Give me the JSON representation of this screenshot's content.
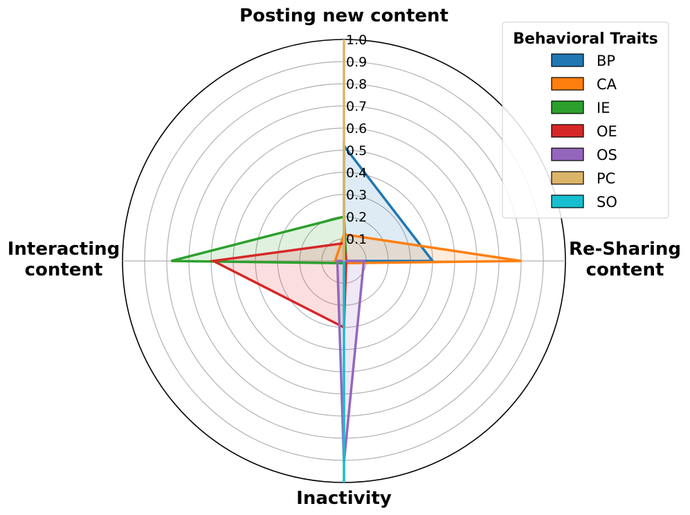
{
  "chart_data": {
    "type": "radar",
    "axes": [
      "Posting new content",
      "Re-Sharing content",
      "Inactivity",
      "Interacting content"
    ],
    "axis_label_lines": [
      [
        "Posting new content"
      ],
      [
        "Re-Sharing",
        "content"
      ],
      [
        "Inactivity"
      ],
      [
        "Interacting",
        "content"
      ]
    ],
    "rlim": [
      0,
      1.0
    ],
    "r_ticks": [
      "0.1",
      "0.2",
      "0.3",
      "0.4",
      "0.5",
      "0.6",
      "0.7",
      "0.8",
      "0.9",
      "1.0"
    ],
    "grid": true,
    "legend": {
      "title": "Behavioral Traits",
      "placement": "top-right"
    },
    "series": [
      {
        "name": "BP",
        "color": "#1f77b4",
        "values": [
          0.52,
          0.4,
          0.0,
          0.0
        ]
      },
      {
        "name": "CA",
        "color": "#ff7f0e",
        "values": [
          0.12,
          0.8,
          0.01,
          0.04
        ]
      },
      {
        "name": "IE",
        "color": "#2ca02c",
        "values": [
          0.2,
          0.01,
          0.01,
          0.78
        ]
      },
      {
        "name": "OE",
        "color": "#d62728",
        "values": [
          0.08,
          0.01,
          0.3,
          0.59
        ]
      },
      {
        "name": "OS",
        "color": "#9467bd",
        "values": [
          0.0,
          0.09,
          0.91,
          0.03
        ]
      },
      {
        "name": "PC",
        "color": "#dcb468",
        "values": [
          1.0,
          0.0,
          0.0,
          0.0
        ]
      },
      {
        "name": "SO",
        "color": "#17becf",
        "values": [
          0.0,
          0.0,
          1.0,
          0.0
        ]
      }
    ]
  }
}
